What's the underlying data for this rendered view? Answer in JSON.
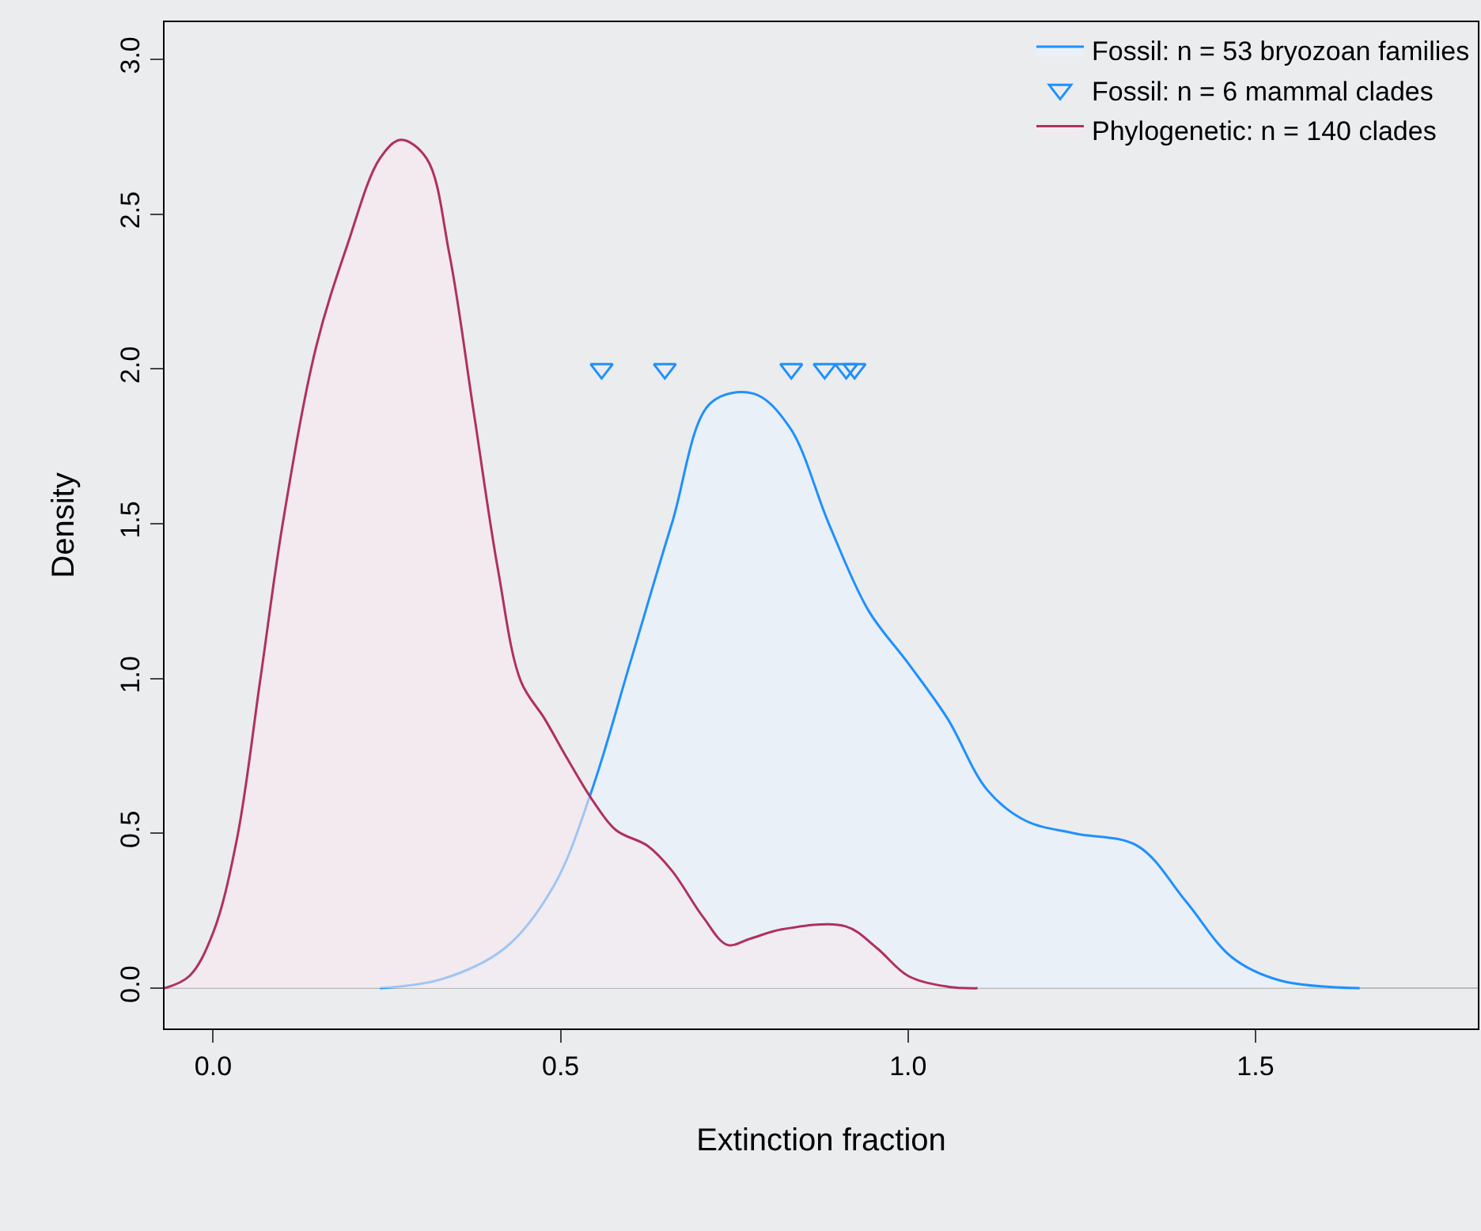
{
  "chart_data": {
    "type": "area",
    "xlabel": "Extinction fraction",
    "ylabel": "Density",
    "xlim": [
      -0.07,
      1.82
    ],
    "ylim": [
      -0.13,
      3.12
    ],
    "xticks": [
      {
        "value": 0,
        "label": "0.0"
      },
      {
        "value": 0.5,
        "label": "0.5"
      },
      {
        "value": 1,
        "label": "1.0"
      },
      {
        "value": 1.5,
        "label": "1.5"
      }
    ],
    "yticks": [
      {
        "value": 0,
        "label": "0.0"
      },
      {
        "value": 0.5,
        "label": "0.5"
      },
      {
        "value": 1,
        "label": "1.0"
      },
      {
        "value": 1.5,
        "label": "1.5"
      },
      {
        "value": 2,
        "label": "2.0"
      },
      {
        "value": 2.5,
        "label": "2.5"
      },
      {
        "value": 3,
        "label": "3.0"
      }
    ],
    "grid": false,
    "legend": "top right",
    "ref_lines": [
      {
        "axis": "y",
        "value": 0,
        "color": "#bbbbbb"
      }
    ],
    "series": [
      {
        "name": "Fossil: n = 53 bryozoan families",
        "color": "#1e90ff",
        "x": [
          0.24,
          0.33,
          0.42,
          0.49,
          0.545,
          0.6,
          0.66,
          0.716,
          0.778,
          0.83,
          0.886,
          0.943,
          1.0,
          1.057,
          1.114,
          1.17,
          1.24,
          1.33,
          1.4,
          1.466,
          1.534,
          1.65
        ],
        "values": [
          0,
          0.03,
          0.13,
          0.33,
          0.64,
          1.05,
          1.5,
          1.89,
          1.92,
          1.81,
          1.5,
          1.22,
          1.05,
          0.87,
          0.64,
          0.54,
          0.5,
          0.46,
          0.28,
          0.1,
          0.026,
          0
        ]
      },
      {
        "name": "Fossil: n = 6 mammal clades",
        "type": "scatter",
        "marker": "triangle",
        "color": "#1e90ff",
        "x": [
          0.559,
          0.65,
          0.832,
          0.88,
          0.911,
          0.923
        ],
        "values": [
          2,
          2,
          2,
          2,
          2,
          2
        ]
      },
      {
        "name": "Phylogenetic: n = 140 clades",
        "color": "#b03060",
        "x": [
          -0.07,
          -0.034,
          0,
          0.034,
          0.068,
          0.1,
          0.148,
          0.193,
          0.24,
          0.27,
          0.307,
          0.34,
          0.375,
          0.41,
          0.443,
          0.477,
          0.51,
          0.545,
          0.58,
          0.625,
          0.66,
          0.705,
          0.74,
          0.773,
          0.818,
          0.91,
          0.955,
          1.0,
          1.057,
          1.1
        ],
        "values": [
          0,
          0.04,
          0.18,
          0.48,
          1.0,
          1.5,
          2.07,
          2.4,
          2.68,
          2.74,
          2.68,
          2.37,
          1.86,
          1.35,
          0.99,
          0.87,
          0.74,
          0.61,
          0.51,
          0.46,
          0.38,
          0.23,
          0.14,
          0.16,
          0.19,
          0.2,
          0.13,
          0.04,
          0.005,
          0
        ]
      }
    ]
  }
}
